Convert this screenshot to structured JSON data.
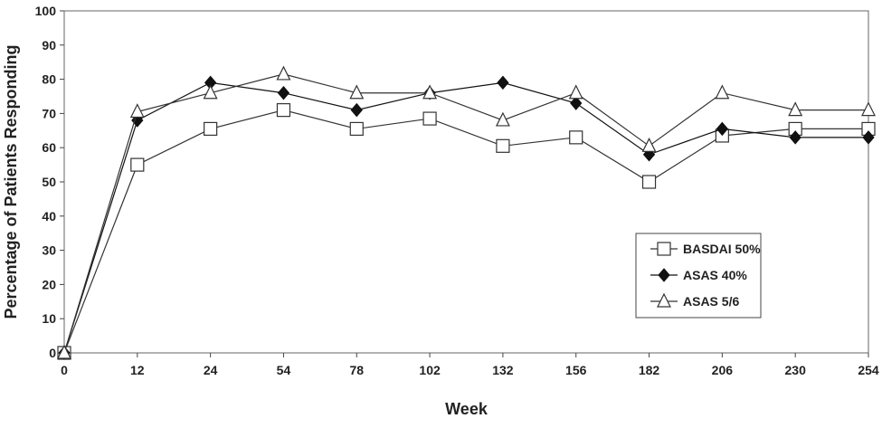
{
  "chart_data": {
    "type": "line",
    "title": "",
    "xlabel": "Week",
    "ylabel": "Percentage of Patients Responding",
    "categories": [
      "0",
      "12",
      "24",
      "54",
      "78",
      "102",
      "132",
      "156",
      "182",
      "206",
      "230",
      "254"
    ],
    "ylim": [
      0,
      100
    ],
    "yticks": [
      0,
      10,
      20,
      30,
      40,
      50,
      60,
      70,
      80,
      90,
      100
    ],
    "grid": false,
    "legend_position": "bottom-right",
    "series": [
      {
        "name": "BASDAI 50%",
        "marker": "square-open",
        "color": "#333333",
        "values": [
          0,
          55,
          65.5,
          71,
          65.5,
          68.5,
          60.5,
          63,
          50,
          63.5,
          65.5,
          65.5
        ]
      },
      {
        "name": "ASAS 40%",
        "marker": "diamond-filled",
        "color": "#111111",
        "values": [
          0,
          68,
          79,
          76,
          71,
          76,
          79,
          73,
          58,
          65.5,
          63,
          63
        ]
      },
      {
        "name": "ASAS 5/6",
        "marker": "triangle-open",
        "color": "#333333",
        "values": [
          0,
          70.5,
          76,
          81.5,
          76,
          76,
          68,
          76,
          60.5,
          76,
          71,
          71
        ]
      }
    ]
  }
}
